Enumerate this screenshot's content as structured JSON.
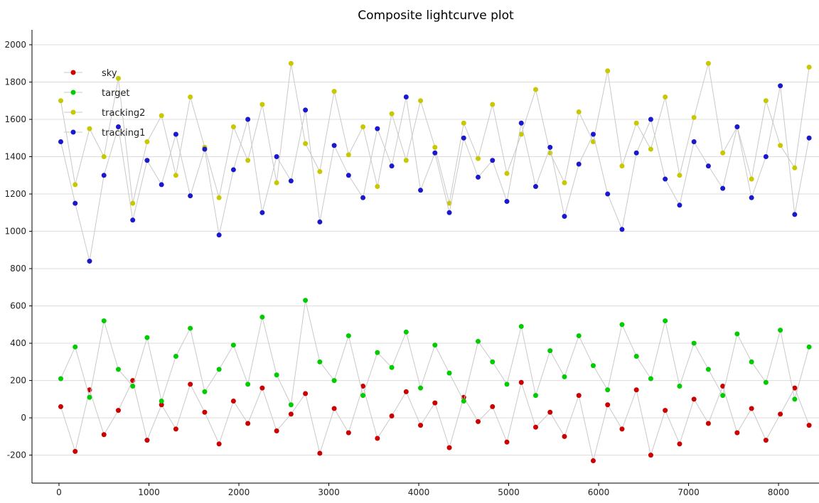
{
  "chart_data": {
    "type": "scatter",
    "title": "Composite lightcurve plot",
    "xlabel": "",
    "ylabel": "",
    "xlim": [
      -300,
      8450
    ],
    "ylim": [
      -350,
      2080
    ],
    "xticks": [
      0,
      1000,
      2000,
      3000,
      4000,
      5000,
      6000,
      7000,
      8000
    ],
    "yticks": [
      -200,
      0,
      200,
      400,
      600,
      800,
      1000,
      1200,
      1400,
      1600,
      1800,
      2000
    ],
    "grid": true,
    "legend_position": "top-left",
    "connect_points": true,
    "connector_color": "#c9c9c9",
    "series": [
      {
        "name": "sky",
        "color": "#cc0000",
        "x": [
          20,
          180,
          340,
          500,
          660,
          820,
          980,
          1140,
          1300,
          1460,
          1620,
          1780,
          1940,
          2100,
          2260,
          2420,
          2580,
          2740,
          2900,
          3060,
          3220,
          3380,
          3540,
          3700,
          3860,
          4020,
          4180,
          4340,
          4500,
          4660,
          4820,
          4980,
          5140,
          5300,
          5460,
          5620,
          5780,
          5940,
          6100,
          6260,
          6420,
          6580,
          6740,
          6900,
          7060,
          7220,
          7380,
          7540,
          7700,
          7860,
          8020,
          8180,
          8340
        ],
        "y": [
          60,
          -180,
          150,
          -90,
          40,
          200,
          -120,
          70,
          -60,
          180,
          30,
          -140,
          90,
          -30,
          160,
          -70,
          20,
          130,
          -190,
          50,
          -80,
          170,
          -110,
          10,
          140,
          -40,
          80,
          -160,
          110,
          -20,
          60,
          -130,
          190,
          -50,
          30,
          -100,
          120,
          -230,
          70,
          -60,
          150,
          -200,
          40,
          -140,
          100,
          -30,
          170,
          -80,
          50,
          -120,
          20,
          160,
          -40
        ]
      },
      {
        "name": "target",
        "color": "#00cc00",
        "x": [
          20,
          180,
          340,
          500,
          660,
          820,
          980,
          1140,
          1300,
          1460,
          1620,
          1780,
          1940,
          2100,
          2260,
          2420,
          2580,
          2740,
          2900,
          3060,
          3220,
          3380,
          3540,
          3700,
          3860,
          4020,
          4180,
          4340,
          4500,
          4660,
          4820,
          4980,
          5140,
          5300,
          5460,
          5620,
          5780,
          5940,
          6100,
          6260,
          6420,
          6580,
          6740,
          6900,
          7060,
          7220,
          7380,
          7540,
          7700,
          7860,
          8020,
          8180,
          8340
        ],
        "y": [
          210,
          380,
          110,
          520,
          260,
          170,
          430,
          90,
          330,
          480,
          140,
          260,
          390,
          180,
          540,
          230,
          70,
          630,
          300,
          200,
          440,
          120,
          350,
          270,
          460,
          160,
          390,
          240,
          90,
          410,
          300,
          180,
          490,
          120,
          360,
          220,
          440,
          280,
          150,
          500,
          330,
          210,
          520,
          170,
          400,
          260,
          120,
          450,
          300,
          190,
          470,
          100,
          380
        ]
      },
      {
        "name": "tracking2",
        "color": "#c8c800",
        "x": [
          20,
          180,
          340,
          500,
          660,
          820,
          980,
          1140,
          1300,
          1460,
          1620,
          1780,
          1940,
          2100,
          2260,
          2420,
          2580,
          2740,
          2900,
          3060,
          3220,
          3380,
          3540,
          3700,
          3860,
          4020,
          4180,
          4340,
          4500,
          4660,
          4820,
          4980,
          5140,
          5300,
          5460,
          5620,
          5780,
          5940,
          6100,
          6260,
          6420,
          6580,
          6740,
          6900,
          7060,
          7220,
          7380,
          7540,
          7700,
          7860,
          8020,
          8180,
          8340
        ],
        "y": [
          1700,
          1250,
          1550,
          1400,
          1820,
          1150,
          1480,
          1620,
          1300,
          1720,
          1450,
          1180,
          1560,
          1380,
          1680,
          1260,
          1900,
          1470,
          1320,
          1750,
          1410,
          1560,
          1240,
          1630,
          1380,
          1700,
          1450,
          1150,
          1580,
          1390,
          1680,
          1310,
          1520,
          1760,
          1420,
          1260,
          1640,
          1480,
          1860,
          1350,
          1580,
          1440,
          1720,
          1300,
          1610,
          1900,
          1420,
          1560,
          1280,
          1700,
          1460,
          1340,
          1880
        ]
      },
      {
        "name": "tracking1",
        "color": "#1a1acc",
        "x": [
          20,
          180,
          340,
          500,
          660,
          820,
          980,
          1140,
          1300,
          1460,
          1620,
          1780,
          1940,
          2100,
          2260,
          2420,
          2580,
          2740,
          2900,
          3060,
          3220,
          3380,
          3540,
          3700,
          3860,
          4020,
          4180,
          4340,
          4500,
          4660,
          4820,
          4980,
          5140,
          5300,
          5460,
          5620,
          5780,
          5940,
          6100,
          6260,
          6420,
          6580,
          6740,
          6900,
          7060,
          7220,
          7380,
          7540,
          7700,
          7860,
          8020,
          8180,
          8340
        ],
        "y": [
          1480,
          1150,
          840,
          1300,
          1560,
          1060,
          1380,
          1250,
          1520,
          1190,
          1440,
          980,
          1330,
          1600,
          1100,
          1400,
          1270,
          1650,
          1050,
          1460,
          1300,
          1180,
          1550,
          1350,
          1720,
          1220,
          1420,
          1100,
          1500,
          1290,
          1380,
          1160,
          1580,
          1240,
          1450,
          1080,
          1360,
          1520,
          1200,
          1010,
          1420,
          1600,
          1280,
          1140,
          1480,
          1350,
          1230,
          1560,
          1180,
          1400,
          1780,
          1090,
          1500
        ]
      }
    ]
  }
}
